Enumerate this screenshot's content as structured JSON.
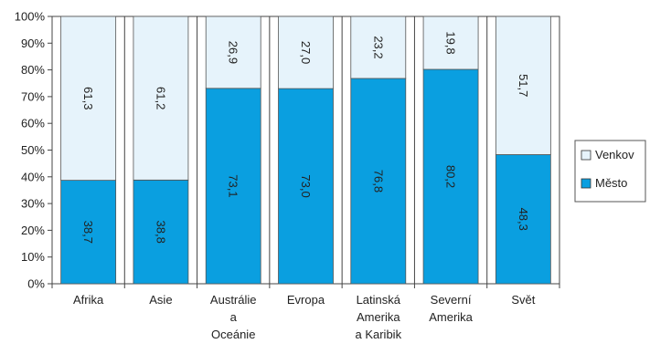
{
  "chart_data": {
    "type": "bar",
    "stacked": true,
    "percent": true,
    "categories": [
      [
        "Afrika"
      ],
      [
        "Asie"
      ],
      [
        "Austrálie",
        "a",
        "Oceánie"
      ],
      [
        "Evropa"
      ],
      [
        "Latinská",
        "Amerika",
        "a Karibik"
      ],
      [
        "Severní",
        "Amerika"
      ],
      [
        "Svět"
      ]
    ],
    "series": [
      {
        "name": "Město",
        "values": [
          38.7,
          38.8,
          73.1,
          73.0,
          76.8,
          80.2,
          48.3
        ],
        "labels": [
          "38,7",
          "38,8",
          "73,1",
          "73,0",
          "76,8",
          "80,2",
          "48,3"
        ],
        "color": "#0a9fe0"
      },
      {
        "name": "Venkov",
        "values": [
          61.3,
          61.2,
          26.9,
          27.0,
          23.2,
          19.8,
          51.7
        ],
        "labels": [
          "61,3",
          "61,2",
          "26,9",
          "27,0",
          "23,2",
          "19,8",
          "51,7"
        ],
        "color": "#e6f3fb"
      }
    ],
    "y_ticks": [
      "0%",
      "10%",
      "20%",
      "30%",
      "40%",
      "50%",
      "60%",
      "70%",
      "80%",
      "90%",
      "100%"
    ],
    "ylim": [
      0,
      100
    ],
    "grid": "vertical",
    "legend": {
      "position": "right",
      "order": [
        "Venkov",
        "Město"
      ]
    }
  }
}
